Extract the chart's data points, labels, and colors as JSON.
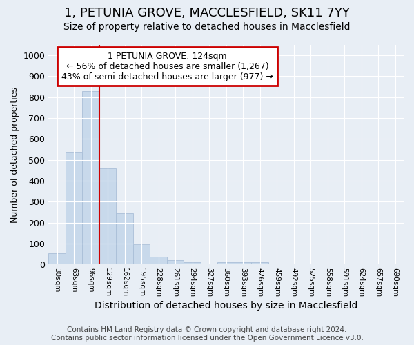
{
  "title": "1, PETUNIA GROVE, MACCLESFIELD, SK11 7YY",
  "subtitle": "Size of property relative to detached houses in Macclesfield",
  "xlabel": "Distribution of detached houses by size in Macclesfield",
  "ylabel": "Number of detached properties",
  "categories": [
    "30sqm",
    "63sqm",
    "96sqm",
    "129sqm",
    "162sqm",
    "195sqm",
    "228sqm",
    "261sqm",
    "294sqm",
    "327sqm",
    "360sqm",
    "393sqm",
    "426sqm",
    "459sqm",
    "492sqm",
    "525sqm",
    "558sqm",
    "591sqm",
    "624sqm",
    "657sqm",
    "690sqm"
  ],
  "values": [
    55,
    535,
    830,
    460,
    247,
    98,
    38,
    22,
    12,
    0,
    10,
    10,
    10,
    0,
    0,
    0,
    0,
    0,
    0,
    0,
    0
  ],
  "bar_color": "#c8d9eb",
  "bar_edge_color": "#aabfd8",
  "vline_color": "#cc0000",
  "annotation_line1": "1 PETUNIA GROVE: 124sqm",
  "annotation_line2": "← 56% of detached houses are smaller (1,267)",
  "annotation_line3": "43% of semi-detached houses are larger (977) →",
  "annotation_box_color": "#cc0000",
  "ylim": [
    0,
    1050
  ],
  "yticks": [
    0,
    100,
    200,
    300,
    400,
    500,
    600,
    700,
    800,
    900,
    1000
  ],
  "footer_text": "Contains HM Land Registry data © Crown copyright and database right 2024.\nContains public sector information licensed under the Open Government Licence v3.0.",
  "background_color": "#e8eef5",
  "grid_color": "#ffffff",
  "title_fontsize": 13,
  "subtitle_fontsize": 10,
  "annotation_fontsize": 9,
  "footer_fontsize": 7.5,
  "ylabel_fontsize": 9,
  "xlabel_fontsize": 10
}
